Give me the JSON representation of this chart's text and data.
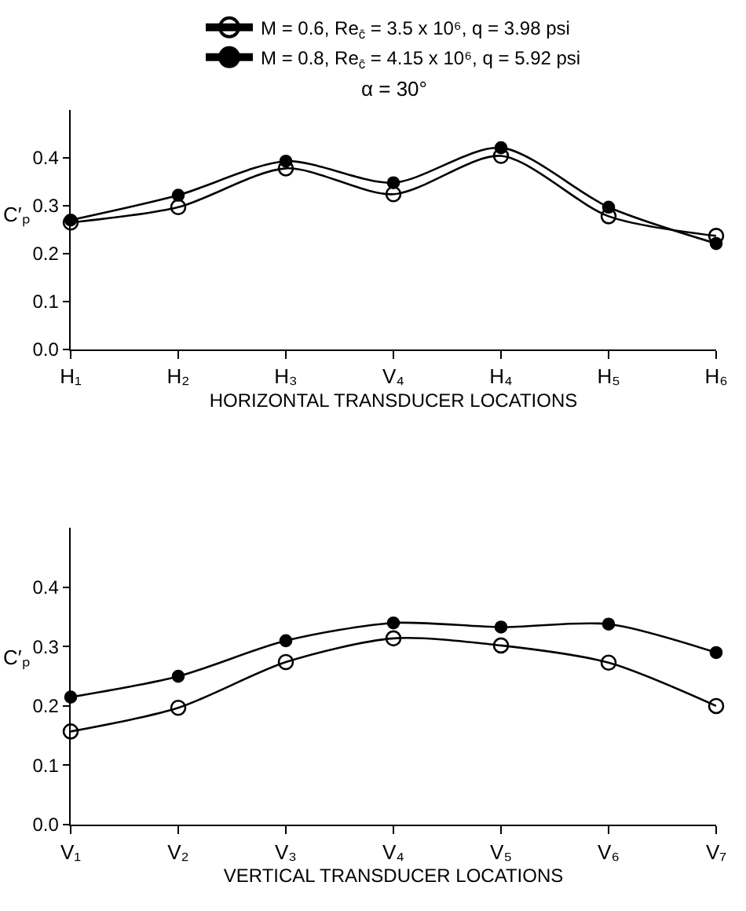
{
  "chart_data": [
    {
      "type": "line",
      "title": "α = 30°",
      "xlabel": "HORIZONTAL TRANSDUCER LOCATIONS",
      "ylabel": "C′ₚ",
      "categories": [
        "H₁",
        "H₂",
        "H₃",
        "V₄",
        "H₄",
        "H₅",
        "H₆"
      ],
      "series": [
        {
          "name": "M = 0.6, Re$_{c̄}$ = 3.5 x 10⁶, q = 3.98 psi",
          "color": "#000000",
          "marker": "circle-open",
          "values": [
            0.265,
            0.297,
            0.378,
            0.324,
            0.404,
            0.278,
            0.237
          ]
        },
        {
          "name": "M = 0.8, Re$_{c̄}$ = 4.15 x 10⁶, q = 5.92 psi",
          "color": "#000000",
          "marker": "circle",
          "values": [
            0.27,
            0.322,
            0.393,
            0.348,
            0.421,
            0.297,
            0.221
          ]
        }
      ],
      "ylim": [
        0,
        0.5
      ],
      "yticks": [
        {
          "value": 0,
          "label": "0.0"
        },
        0.1,
        0.2,
        0.3,
        0.4
      ],
      "legend": "top",
      "line_style": "solid"
    },
    {
      "type": "line",
      "xlabel": "VERTICAL TRANSDUCER LOCATIONS",
      "ylabel": "C′ₚ",
      "categories": [
        "V₁",
        "V₂",
        "V₃",
        "V₄",
        "V₅",
        "V₆",
        "V₇"
      ],
      "series": [
        {
          "color": "#000000",
          "marker": "circle-open",
          "values": [
            0.157,
            0.197,
            0.274,
            0.314,
            0.302,
            0.273,
            0.2
          ]
        },
        {
          "color": "#000000",
          "marker": "circle",
          "values": [
            0.215,
            0.25,
            0.31,
            0.34,
            0.333,
            0.338,
            0.29
          ]
        }
      ],
      "ylim": [
        0,
        0.5
      ],
      "yticks": [
        {
          "value": 0,
          "label": "0.0"
        },
        0.1,
        0.2,
        0.3,
        0.4
      ],
      "legend": false,
      "line_style": "solid"
    }
  ]
}
